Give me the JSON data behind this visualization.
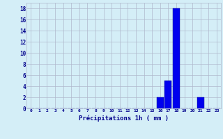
{
  "hours": [
    0,
    1,
    2,
    3,
    4,
    5,
    6,
    7,
    8,
    9,
    10,
    11,
    12,
    13,
    14,
    15,
    16,
    17,
    18,
    19,
    20,
    21,
    22,
    23
  ],
  "values": [
    0,
    0,
    0,
    0,
    0,
    0,
    0,
    0,
    0,
    0,
    0,
    0,
    0,
    0,
    0,
    0,
    2,
    5,
    18,
    0,
    0,
    2,
    0,
    0
  ],
  "bar_color": "#0000ee",
  "bar_edge_color": "#00008b",
  "background_color": "#d4eef7",
  "grid_color": "#b0b8cc",
  "xlabel": "Précipitations 1h ( mm )",
  "xlabel_color": "#00008b",
  "tick_color": "#00008b",
  "ylim": [
    0,
    19
  ],
  "yticks": [
    0,
    2,
    4,
    6,
    8,
    10,
    12,
    14,
    16,
    18
  ],
  "fig_bg": "#d4eef7"
}
